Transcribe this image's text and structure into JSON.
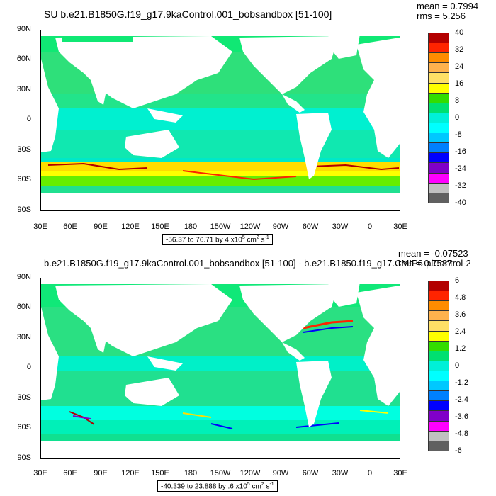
{
  "panels": [
    {
      "title": "SU b.e21.B1850G.f19_g17.9kaControl.001_bobsandbox [51-100]",
      "mean": "mean = 0.7994",
      "rms": "rms = 5.256",
      "range_prefix": "-56.37 to 76.71 by 4 x10",
      "range_exp": "5",
      "range_unit": " cm",
      "range_unit_exp": "2",
      "range_suffix": " s",
      "range_suffix_exp": "-1",
      "colorbar_labels": [
        "40",
        "32",
        "24",
        "16",
        "8",
        "0",
        "-8",
        "-16",
        "-24",
        "-32",
        "-40"
      ]
    },
    {
      "title": "b.e21.B1850G.f19_g17.9kaControl.001_bobsandbox [51-100] - b.e21.B1850.f19_g17.CMIP6-piControl-2",
      "mean": "mean = -0.07523",
      "rms": "rms = 0.7587",
      "range_prefix": "-40.339 to 23.888 by .6 x10",
      "range_exp": "5",
      "range_unit": " cm",
      "range_unit_exp": "2",
      "range_suffix": " s",
      "range_suffix_exp": "-1",
      "colorbar_labels": [
        "6",
        "4.8",
        "3.6",
        "2.4",
        "1.2",
        "0",
        "-1.2",
        "-2.4",
        "-3.6",
        "-4.8",
        "-6"
      ]
    }
  ],
  "lat_labels": [
    "90N",
    "60N",
    "30N",
    "0",
    "30S",
    "60S",
    "90S"
  ],
  "lon_labels": [
    "30E",
    "60E",
    "90E",
    "120E",
    "150E",
    "180",
    "150W",
    "120W",
    "90W",
    "60W",
    "30W",
    "0",
    "30E"
  ],
  "colorbar_colors": [
    "#b30000",
    "#ff2400",
    "#ff6a00",
    "#ff9f2a",
    "#ffc23c",
    "#ffff00",
    "#7fe000",
    "#00e05a",
    "#00e6c8",
    "#00ffff",
    "#00c8ff",
    "#0082ff",
    "#0014ff",
    "#8a00d4",
    "#e600e6",
    "#c8c8c8",
    "#5a5a5a"
  ],
  "colorbar_colors_used": [
    "#b30000",
    "#ff2400",
    "#ff8c00",
    "#ffb24d",
    "#ffe066",
    "#ffff00",
    "#33dd00",
    "#00e070",
    "#00f0d8",
    "#00ffff",
    "#00c8ff",
    "#0080ff",
    "#0000ff",
    "#8000c8",
    "#ff00ff",
    "#c0c0c0",
    "#606060"
  ],
  "ocean_color": "#00e6a0",
  "land_color": "#ffffff"
}
